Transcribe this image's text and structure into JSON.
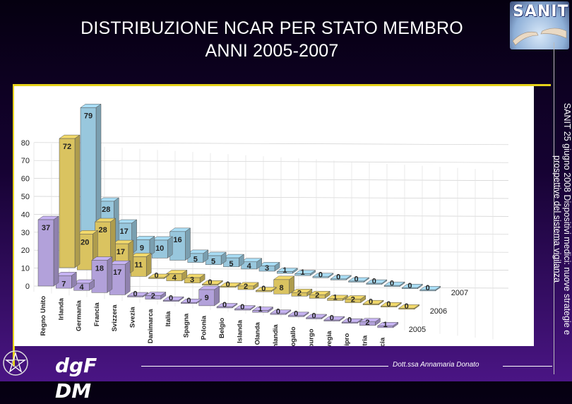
{
  "slide": {
    "title_line1": "DISTRIBUZIONE NCAR PER STATO MEMBRO",
    "title_line2": "ANNI 2005-2007",
    "logo_text": "SANIT",
    "side_note": "SANIT 25 giugno 2008 Dispositivi medici: nuove strategie e prospettive del sistema vigilanza",
    "brand": "dgF DM",
    "author": "Dott.ssa Annamaria Donato"
  },
  "colors": {
    "series_2005": "#c6b3f2",
    "series_2006": "#f2d96b",
    "series_2007": "#a9ddf5",
    "background_top": "#050010",
    "background_bottom": "#4a1584",
    "accent_line": "#e6d21a"
  },
  "chart_data": {
    "type": "bar",
    "title": "",
    "xlabel": "",
    "ylabel": "",
    "ylim": [
      0,
      80
    ],
    "yticks": [
      0,
      10,
      20,
      30,
      40,
      50,
      60,
      70,
      80
    ],
    "grid": true,
    "legend": "series labels at right end of each row",
    "categories": [
      "Regno Unito",
      "Irlanda",
      "Germania",
      "Francia",
      "Svizzera",
      "Svezia",
      "Danimarca",
      "Italia",
      "Spagna",
      "Polonia",
      "Belgio",
      "Islanda",
      "Olanda",
      "Finlandia",
      "Portogallo",
      "Lussemburgo",
      "Norvegia",
      "Cipro",
      "Austria",
      "Grecia"
    ],
    "series": [
      {
        "name": "2005",
        "values": [
          37,
          7,
          4,
          18,
          17,
          0,
          2,
          0,
          0,
          9,
          0,
          0,
          1,
          0,
          0,
          0,
          0,
          0,
          2,
          1
        ]
      },
      {
        "name": "2006",
        "values": [
          72,
          20,
          28,
          17,
          11,
          0,
          4,
          3,
          0,
          0,
          2,
          0,
          8,
          2,
          2,
          1,
          2,
          0,
          0,
          0
        ]
      },
      {
        "name": "2007",
        "values": [
          79,
          28,
          17,
          9,
          10,
          16,
          5,
          5,
          5,
          4,
          3,
          1,
          1,
          0,
          0,
          0,
          0,
          0,
          0,
          0
        ]
      }
    ]
  }
}
